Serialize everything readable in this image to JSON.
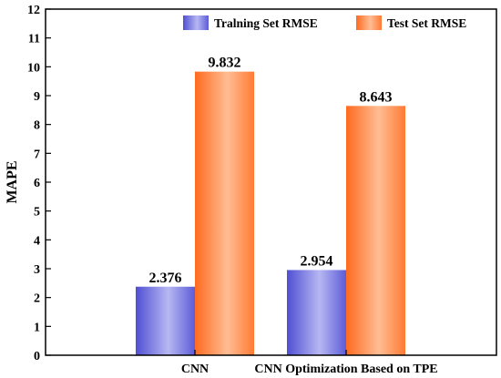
{
  "chart_data": {
    "type": "bar",
    "title": "",
    "xlabel": "",
    "ylabel": "MAPE",
    "ylim": [
      0,
      12
    ],
    "yticks": [
      0,
      1,
      2,
      3,
      4,
      5,
      6,
      7,
      8,
      9,
      10,
      11,
      12
    ],
    "categories": [
      "CNN",
      "CNN Optimization Based on TPE"
    ],
    "series": [
      {
        "name": "Tralning Set RMSE",
        "values": [
          2.376,
          2.954
        ],
        "color": "#6666dd",
        "value_labels": [
          "2.376",
          "2.954"
        ]
      },
      {
        "name": "Test Set RMSE",
        "values": [
          9.832,
          8.643
        ],
        "color": "#ff7f3a",
        "value_labels": [
          "9.832",
          "8.643"
        ]
      }
    ],
    "legend_position": "top",
    "grid": false
  }
}
